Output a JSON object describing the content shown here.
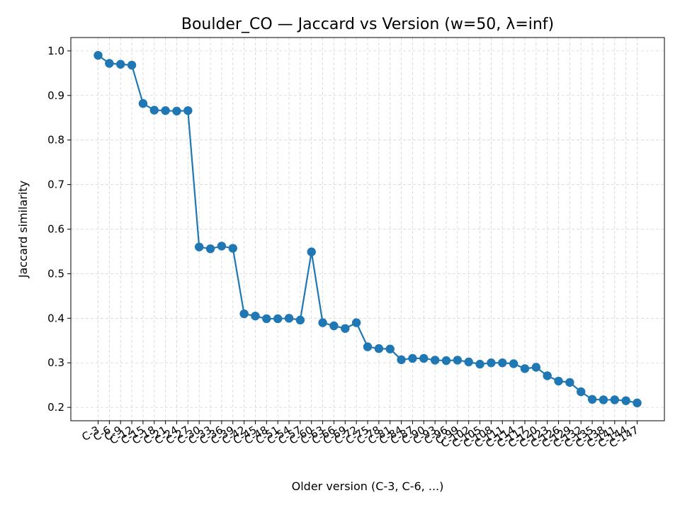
{
  "chart_data": {
    "type": "line",
    "title": "Boulder_CO — Jaccard vs Version (w=50, λ=inf)",
    "xlabel": "Older version (C-3, C-6, ...)",
    "ylabel": "Jaccard similarity",
    "ylim": [
      0.17,
      1.03
    ],
    "yticks": [
      "0.2",
      "0.3",
      "0.4",
      "0.5",
      "0.6",
      "0.7",
      "0.8",
      "0.9",
      "1.0"
    ],
    "grid": true,
    "legend": "none",
    "line_color": "#1f77b4",
    "categories": [
      "C-3",
      "C-6",
      "C-9",
      "C-12",
      "C-15",
      "C-18",
      "C-21",
      "C-24",
      "C-27",
      "C-30",
      "C-33",
      "C-36",
      "C-39",
      "C-42",
      "C-45",
      "C-48",
      "C-51",
      "C-54",
      "C-57",
      "C-60",
      "C-63",
      "C-66",
      "C-69",
      "C-72",
      "C-75",
      "C-78",
      "C-81",
      "C-84",
      "C-87",
      "C-90",
      "C-93",
      "C-96",
      "C-99",
      "C-102",
      "C-105",
      "C-108",
      "C-111",
      "C-114",
      "C-117",
      "C-120",
      "C-123",
      "C-126",
      "C-129",
      "C-132",
      "C-135",
      "C-138",
      "C-141",
      "C-144",
      "C-147"
    ],
    "values": [
      0.99,
      0.972,
      0.97,
      0.968,
      0.882,
      0.867,
      0.866,
      0.865,
      0.866,
      0.56,
      0.556,
      0.562,
      0.557,
      0.41,
      0.405,
      0.399,
      0.399,
      0.4,
      0.396,
      0.549,
      0.39,
      0.383,
      0.377,
      0.39,
      0.336,
      0.332,
      0.331,
      0.307,
      0.31,
      0.31,
      0.306,
      0.305,
      0.306,
      0.302,
      0.297,
      0.3,
      0.3,
      0.298,
      0.287,
      0.29,
      0.271,
      0.259,
      0.256,
      0.235,
      0.218,
      0.217,
      0.217,
      0.215,
      0.21
    ]
  }
}
